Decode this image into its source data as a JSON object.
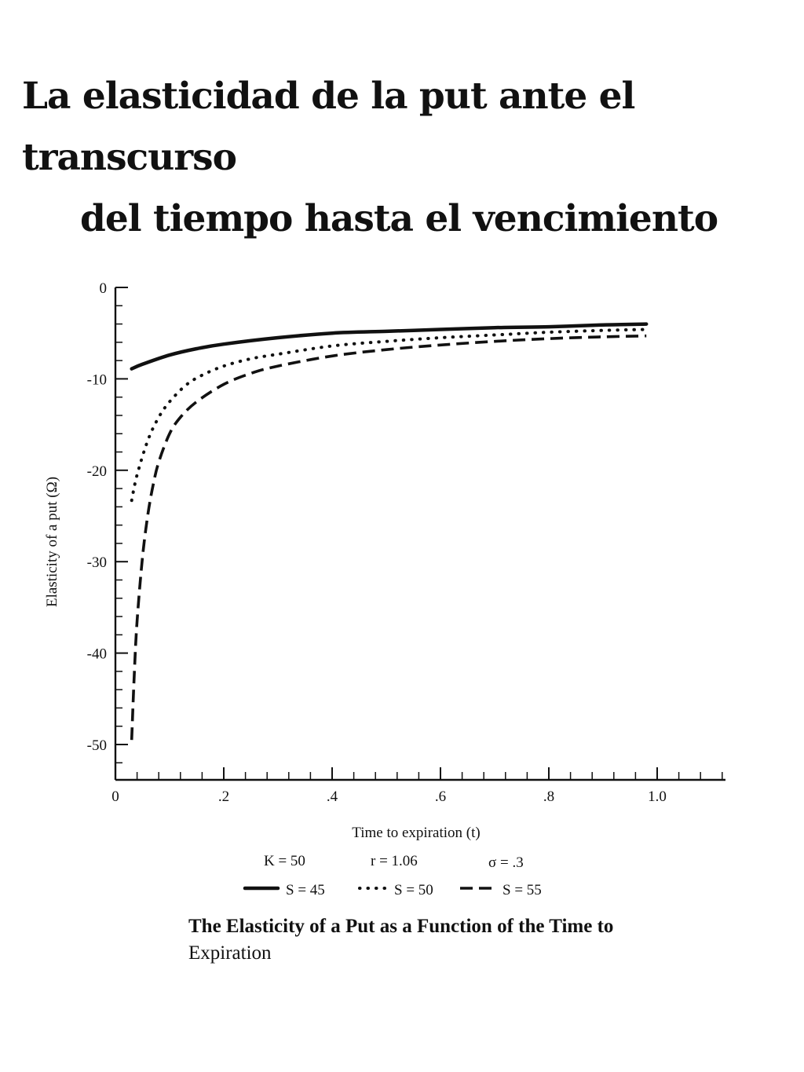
{
  "page": {
    "heading_line1": "La elasticidad de la put ante el transcurso",
    "heading_line2": "del tiempo hasta el vencimiento"
  },
  "caption": {
    "line1": "The Elasticity of a Put as a Function of the Time to",
    "line2": "Expiration"
  },
  "params": {
    "k": "K = 50",
    "r": "r = 1.06",
    "sigma": "σ = .3"
  },
  "chart_data": {
    "type": "line",
    "title": "",
    "xlabel": "Time to expiration (t)",
    "ylabel": "Elasticity of a put (Ω)",
    "xlim": [
      0,
      1.12
    ],
    "ylim": [
      -53,
      0
    ],
    "x_ticks": [
      0,
      0.2,
      0.4,
      0.6,
      0.8,
      1.0
    ],
    "x_tick_labels": [
      "0",
      ".2",
      ".4",
      ".6",
      ".8",
      "1.0"
    ],
    "y_ticks": [
      0,
      -10,
      -20,
      -30,
      -40,
      -50
    ],
    "y_tick_labels": [
      "0",
      "-10",
      "-20",
      "-30",
      "-40",
      "-50"
    ],
    "grid": false,
    "legend_position": "bottom",
    "series": [
      {
        "name": "S = 45",
        "style": "solid",
        "x": [
          0.03,
          0.05,
          0.1,
          0.15,
          0.2,
          0.3,
          0.4,
          0.5,
          0.6,
          0.7,
          0.8,
          0.9,
          0.98
        ],
        "y": [
          -8.9,
          -8.4,
          -7.4,
          -6.7,
          -6.2,
          -5.5,
          -5.0,
          -4.8,
          -4.6,
          -4.4,
          -4.3,
          -4.1,
          -4.0
        ]
      },
      {
        "name": "S = 50",
        "style": "dotted",
        "x": [
          0.03,
          0.04,
          0.06,
          0.08,
          0.1,
          0.13,
          0.16,
          0.2,
          0.25,
          0.3,
          0.4,
          0.5,
          0.6,
          0.7,
          0.8,
          0.9,
          0.98
        ],
        "y": [
          -23.3,
          -20.5,
          -16.7,
          -14.2,
          -12.5,
          -10.7,
          -9.6,
          -8.6,
          -7.8,
          -7.3,
          -6.4,
          -5.9,
          -5.5,
          -5.2,
          -4.9,
          -4.7,
          -4.6
        ]
      },
      {
        "name": "S = 55",
        "style": "dashed",
        "x": [
          0.03,
          0.035,
          0.04,
          0.05,
          0.06,
          0.07,
          0.08,
          0.1,
          0.12,
          0.15,
          0.2,
          0.25,
          0.3,
          0.4,
          0.5,
          0.6,
          0.7,
          0.8,
          0.9,
          0.98
        ],
        "y": [
          -49.5,
          -42.0,
          -36.5,
          -29.5,
          -24.8,
          -21.5,
          -19.1,
          -16.0,
          -14.2,
          -12.5,
          -10.6,
          -9.4,
          -8.6,
          -7.5,
          -6.8,
          -6.3,
          -5.9,
          -5.6,
          -5.4,
          -5.3
        ]
      }
    ]
  }
}
